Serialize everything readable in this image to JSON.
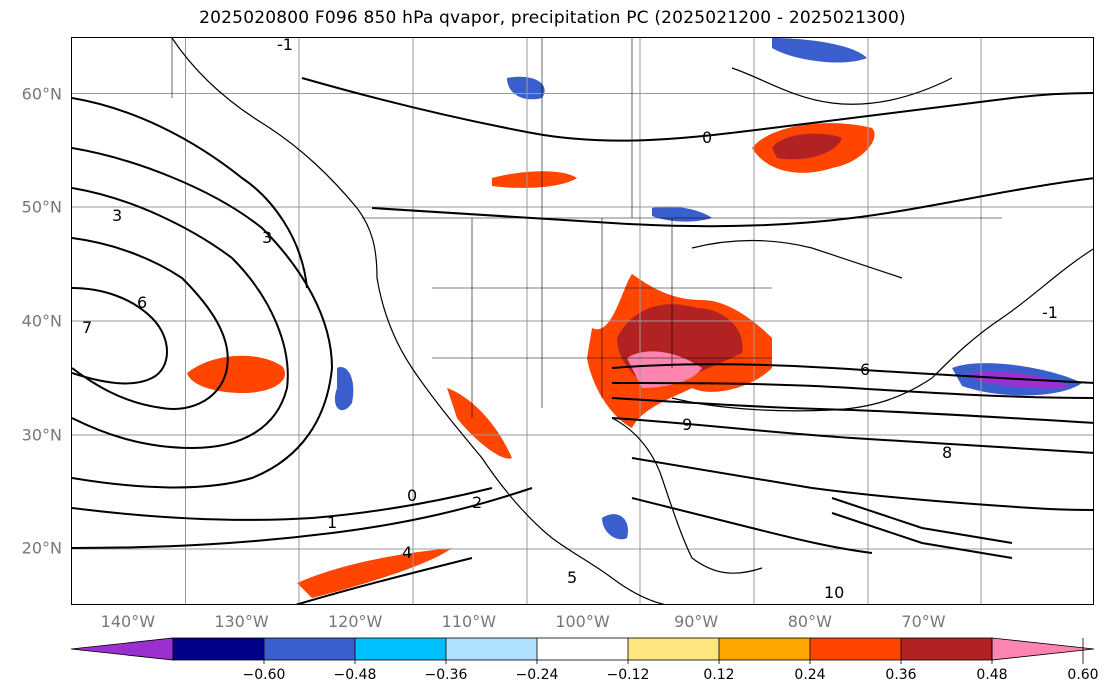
{
  "title": "2025020800 F096 850 hPa qvapor, precipitation PC (2025021200 - 2025021300)",
  "map": {
    "latitude_labels": [
      {
        "text": "60°N",
        "lat": 60
      },
      {
        "text": "50°N",
        "lat": 50
      },
      {
        "text": "40°N",
        "lat": 40
      },
      {
        "text": "30°N",
        "lat": 30
      },
      {
        "text": "20°N",
        "lat": 20
      }
    ],
    "longitude_labels": [
      {
        "text": "140°W",
        "lon": -140
      },
      {
        "text": "130°W",
        "lon": -130
      },
      {
        "text": "120°W",
        "lon": -120
      },
      {
        "text": "110°W",
        "lon": -110
      },
      {
        "text": "100°W",
        "lon": -100
      },
      {
        "text": "90°W",
        "lon": -90
      },
      {
        "text": "80°W",
        "lon": -80
      },
      {
        "text": "70°W",
        "lon": -70
      }
    ],
    "extent": {
      "lon_min": -145,
      "lon_max": -55,
      "lat_min": 15,
      "lat_max": 65
    },
    "contour_labels": [
      "0",
      "0",
      "1",
      "2",
      "3",
      "3",
      "4",
      "5",
      "6",
      "6",
      "7",
      "8",
      "9",
      "10",
      "-1",
      "-1"
    ]
  },
  "colorbar": {
    "tick_labels": [
      "−0.60",
      "−0.48",
      "−0.36",
      "−0.24",
      "−0.12",
      "0.12",
      "0.24",
      "0.36",
      "0.48",
      "0.60"
    ],
    "colors": [
      "#9b30d0",
      "#00008b",
      "#3a5fcd",
      "#00bfff",
      "#b0e0ff",
      "#ffffff",
      "#ffe680",
      "#ffa500",
      "#ff4500",
      "#b22222",
      "#ff85b0"
    ]
  }
}
